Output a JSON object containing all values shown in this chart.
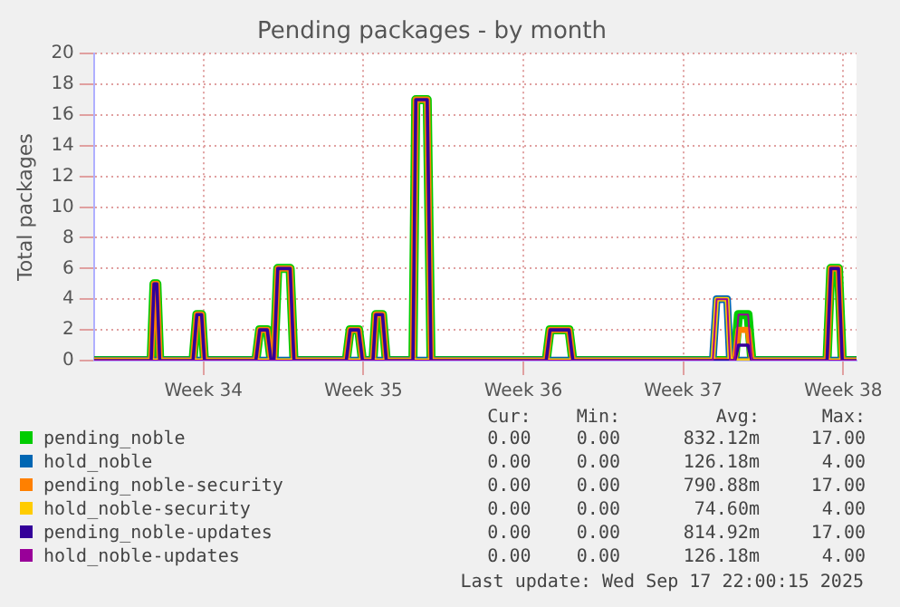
{
  "chart_data": {
    "type": "line",
    "title": "Pending packages - by month",
    "ylabel": "Total packages",
    "x": [
      "2025-08-13T05:00",
      "2025-08-15T17:00",
      "2025-08-15T20:00",
      "2025-08-15T23:00",
      "2025-08-16T02:00",
      "2025-08-17T13:00",
      "2025-08-17T17:00",
      "2025-08-17T22:00",
      "2025-08-18T01:00",
      "2025-08-20T07:00",
      "2025-08-20T11:00",
      "2025-08-20T19:00",
      "2025-08-20T23:00",
      "2025-08-21T02:00",
      "2025-08-21T06:00",
      "2025-08-21T19:00",
      "2025-08-21T23:00",
      "2025-08-24T06:00",
      "2025-08-24T10:00",
      "2025-08-24T19:00",
      "2025-08-24T23:00",
      "2025-08-25T10:00",
      "2025-08-25T13:00",
      "2025-08-25T20:00",
      "2025-08-26T00:00",
      "2025-08-27T04:00",
      "2025-08-27T07:00",
      "2025-08-27T19:00",
      "2025-08-27T23:00",
      "2025-09-02T00:00",
      "2025-09-02T04:00",
      "2025-09-03T00:00",
      "2025-09-03T04:00",
      "2025-09-09T07:00",
      "2025-09-09T11:00",
      "2025-09-09T22:00",
      "2025-09-10T01:00",
      "2025-09-10T06:00",
      "2025-09-10T10:00",
      "2025-09-10T20:00",
      "2025-09-11T00:00",
      "2025-09-14T07:00",
      "2025-09-14T11:00",
      "2025-09-14T19:00",
      "2025-09-14T23:00",
      "2025-09-15T14:00"
    ],
    "series": [
      {
        "name": "pending_noble",
        "color": "#00cc00",
        "values": [
          0,
          0,
          5,
          5,
          0,
          0,
          3,
          3,
          0,
          0,
          2,
          2,
          0,
          0,
          6,
          6,
          0,
          0,
          2,
          2,
          0,
          0,
          3,
          3,
          0,
          0,
          17,
          17,
          0,
          0,
          2,
          2,
          0,
          0,
          0,
          0,
          0,
          0,
          3,
          3,
          0,
          0,
          6,
          6,
          0,
          0
        ]
      },
      {
        "name": "hold_noble",
        "color": "#0066b3",
        "values": [
          0,
          0,
          0,
          0,
          0,
          0,
          0,
          0,
          0,
          0,
          0,
          0,
          0,
          0,
          0,
          0,
          0,
          0,
          0,
          0,
          0,
          0,
          0,
          0,
          0,
          0,
          0,
          0,
          0,
          0,
          0,
          0,
          0,
          0,
          4,
          4,
          0,
          0,
          0,
          0,
          0,
          0,
          0,
          0,
          0,
          0
        ]
      },
      {
        "name": "pending_noble-security",
        "color": "#ff8000",
        "values": [
          0,
          0,
          5,
          5,
          0,
          0,
          3,
          3,
          0,
          0,
          2,
          2,
          0,
          0,
          6,
          6,
          0,
          0,
          2,
          2,
          0,
          0,
          3,
          3,
          0,
          0,
          17,
          17,
          0,
          0,
          2,
          2,
          0,
          0,
          0,
          0,
          0,
          0,
          2,
          2,
          0,
          0,
          6,
          6,
          0,
          0
        ]
      },
      {
        "name": "hold_noble-security",
        "color": "#ffcc00",
        "values": [
          0,
          0,
          0,
          0,
          0,
          0,
          0,
          0,
          0,
          0,
          0,
          0,
          0,
          0,
          0,
          0,
          0,
          0,
          0,
          0,
          0,
          0,
          0,
          0,
          0,
          0,
          0,
          0,
          0,
          0,
          0,
          0,
          0,
          0,
          4,
          4,
          0,
          0,
          0,
          0,
          0,
          0,
          0,
          0,
          0,
          0
        ]
      },
      {
        "name": "pending_noble-updates",
        "color": "#330099",
        "values": [
          0,
          0,
          5,
          5,
          0,
          0,
          3,
          3,
          0,
          0,
          2,
          2,
          0,
          0,
          6,
          6,
          0,
          0,
          2,
          2,
          0,
          0,
          3,
          3,
          0,
          0,
          17,
          17,
          0,
          0,
          2,
          2,
          0,
          0,
          0,
          0,
          0,
          0,
          1,
          1,
          0,
          0,
          6,
          6,
          0,
          0
        ]
      },
      {
        "name": "hold_noble-updates",
        "color": "#990099",
        "values": [
          0,
          0,
          0,
          0,
          0,
          0,
          0,
          0,
          0,
          0,
          0,
          0,
          0,
          0,
          0,
          0,
          0,
          0,
          0,
          0,
          0,
          0,
          0,
          0,
          0,
          0,
          0,
          0,
          0,
          0,
          0,
          0,
          0,
          0,
          4,
          4,
          0,
          0,
          3,
          3,
          0,
          0,
          0,
          0,
          0,
          0
        ]
      }
    ],
    "xlim": [
      "2025-08-13T05:00",
      "2025-09-15T14:00"
    ],
    "xticks": [
      {
        "value": "2025-08-18",
        "label": "Week 34"
      },
      {
        "value": "2025-08-25",
        "label": "Week 35"
      },
      {
        "value": "2025-09-01",
        "label": "Week 36"
      },
      {
        "value": "2025-09-08",
        "label": "Week 37"
      },
      {
        "value": "2025-09-15",
        "label": "Week 38"
      }
    ],
    "ylim": [
      0,
      20
    ],
    "yticks": [
      0,
      2,
      4,
      6,
      8,
      10,
      12,
      14,
      16,
      18,
      20
    ],
    "grid": true,
    "legend": "bottom",
    "marker": "none",
    "line_style": "solid",
    "annotations": [
      "Cur:",
      "Min:",
      "Avg:",
      "Max:",
      "0.00",
      "0.00",
      "832.12m",
      "17.00",
      "0.00",
      "0.00",
      "126.18m",
      "4.00",
      "0.00",
      "0.00",
      "790.88m",
      "17.00",
      "0.00",
      "0.00",
      "74.60m",
      "4.00",
      "0.00",
      "0.00",
      "814.92m",
      "17.00",
      "0.00",
      "0.00",
      "126.18m",
      "4.00",
      "Last update: Wed Sep 17 22:00:15 2025"
    ]
  }
}
